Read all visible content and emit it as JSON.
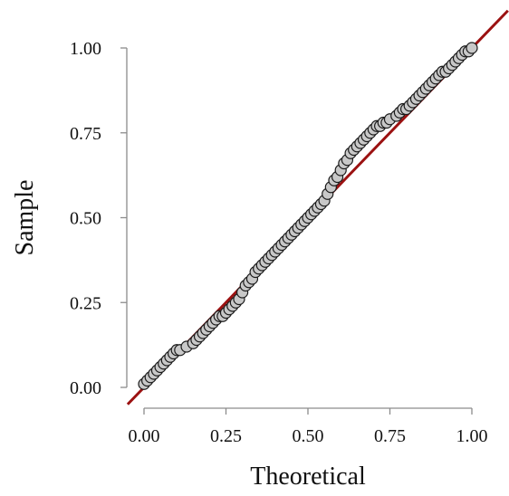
{
  "chart_data": {
    "type": "scatter",
    "xlabel": "Theoretical",
    "ylabel": "Sample",
    "xlim": [
      0,
      1
    ],
    "ylim": [
      0,
      1
    ],
    "x_ticks": [
      "0.00",
      "0.25",
      "0.50",
      "0.75",
      "1.00"
    ],
    "y_ticks": [
      "0.00",
      "0.25",
      "0.50",
      "0.75",
      "1.00"
    ],
    "grid": false,
    "reference_line": {
      "intercept": 0,
      "slope": 1,
      "color": "#9b1111"
    },
    "point_fill": "#c8c8c8",
    "point_stroke": "#1a1a1a",
    "x": [
      0.0,
      0.01,
      0.02,
      0.03,
      0.04,
      0.05,
      0.06,
      0.07,
      0.08,
      0.09,
      0.1,
      0.11,
      0.13,
      0.15,
      0.16,
      0.17,
      0.18,
      0.19,
      0.2,
      0.21,
      0.22,
      0.23,
      0.24,
      0.25,
      0.26,
      0.27,
      0.28,
      0.29,
      0.3,
      0.31,
      0.32,
      0.33,
      0.34,
      0.35,
      0.36,
      0.37,
      0.38,
      0.39,
      0.4,
      0.41,
      0.42,
      0.43,
      0.44,
      0.45,
      0.46,
      0.47,
      0.48,
      0.49,
      0.5,
      0.51,
      0.52,
      0.53,
      0.54,
      0.55,
      0.56,
      0.57,
      0.58,
      0.59,
      0.6,
      0.61,
      0.62,
      0.63,
      0.64,
      0.65,
      0.66,
      0.67,
      0.68,
      0.69,
      0.7,
      0.71,
      0.72,
      0.73,
      0.74,
      0.75,
      0.77,
      0.78,
      0.79,
      0.8,
      0.81,
      0.82,
      0.83,
      0.84,
      0.85,
      0.86,
      0.87,
      0.88,
      0.89,
      0.9,
      0.91,
      0.92,
      0.93,
      0.94,
      0.95,
      0.96,
      0.97,
      0.98,
      0.99,
      1.0
    ],
    "y": [
      0.01,
      0.02,
      0.03,
      0.04,
      0.05,
      0.06,
      0.07,
      0.08,
      0.09,
      0.1,
      0.11,
      0.11,
      0.12,
      0.13,
      0.14,
      0.15,
      0.16,
      0.17,
      0.18,
      0.19,
      0.2,
      0.21,
      0.21,
      0.22,
      0.23,
      0.24,
      0.25,
      0.26,
      0.28,
      0.3,
      0.31,
      0.32,
      0.34,
      0.35,
      0.36,
      0.37,
      0.38,
      0.39,
      0.4,
      0.41,
      0.42,
      0.43,
      0.44,
      0.45,
      0.46,
      0.47,
      0.48,
      0.49,
      0.5,
      0.51,
      0.52,
      0.53,
      0.54,
      0.55,
      0.57,
      0.59,
      0.61,
      0.62,
      0.64,
      0.66,
      0.67,
      0.69,
      0.7,
      0.71,
      0.72,
      0.73,
      0.74,
      0.75,
      0.76,
      0.77,
      0.77,
      0.78,
      0.78,
      0.79,
      0.8,
      0.81,
      0.82,
      0.82,
      0.83,
      0.84,
      0.85,
      0.86,
      0.87,
      0.88,
      0.89,
      0.9,
      0.91,
      0.92,
      0.93,
      0.93,
      0.94,
      0.95,
      0.96,
      0.97,
      0.98,
      0.99,
      0.99,
      1.0
    ]
  }
}
